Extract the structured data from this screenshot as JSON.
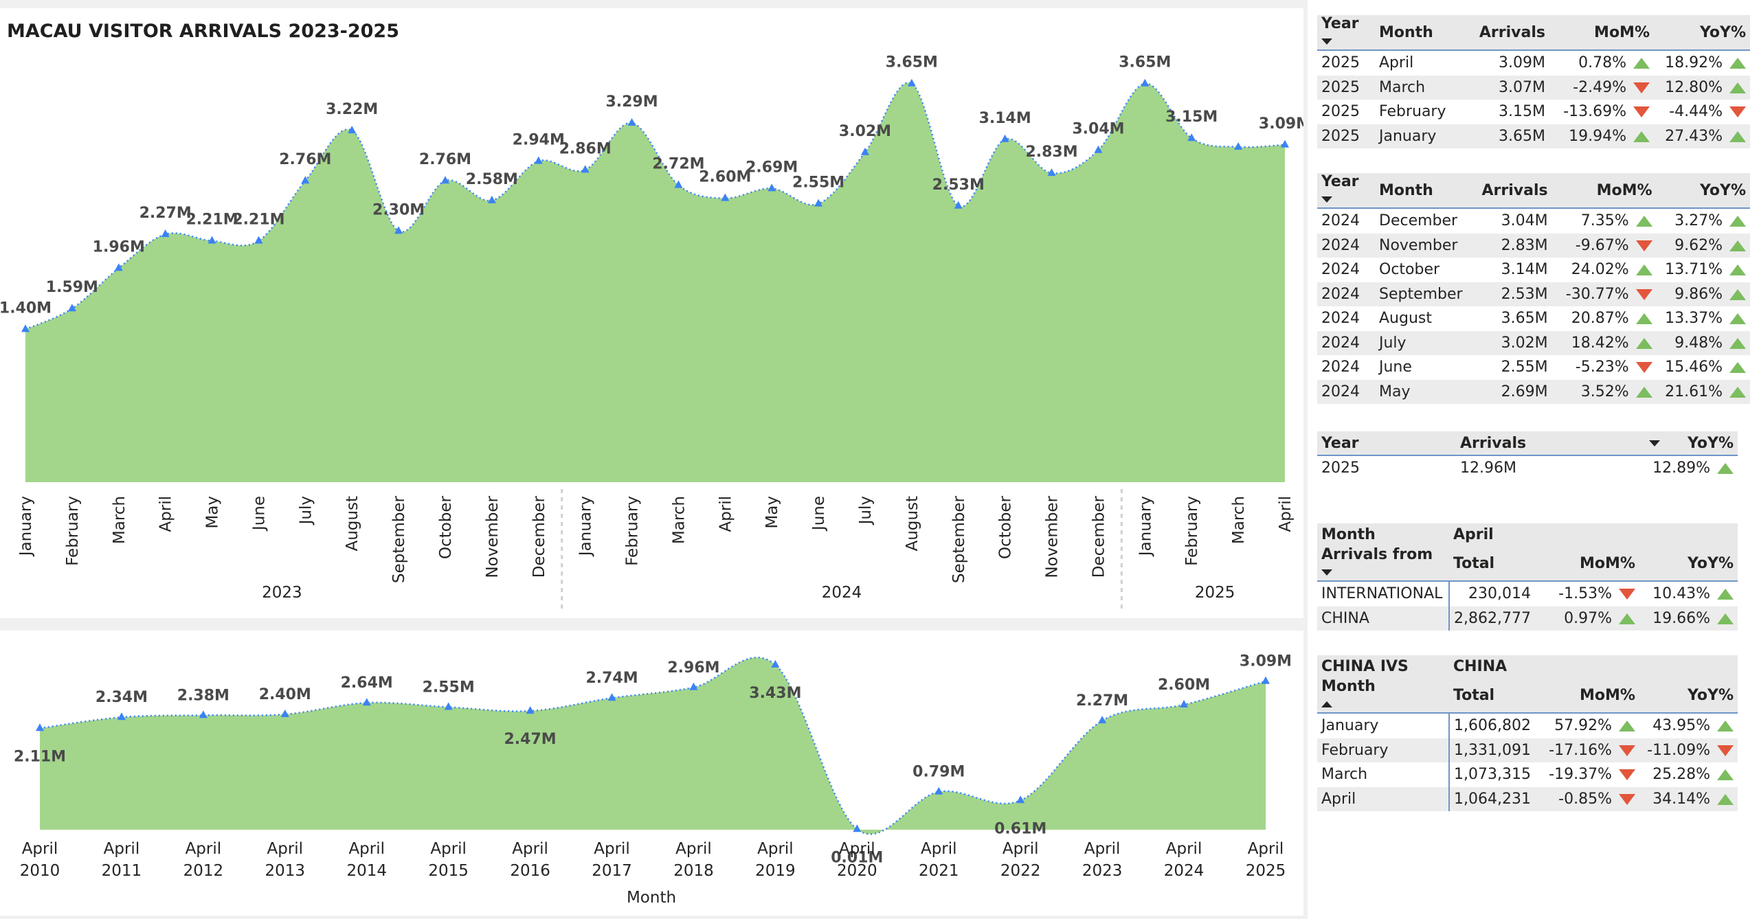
{
  "page_title": "MACAU VISITOR ARRIVALS 2023-2025",
  "colors": {
    "area_fill": "#a3d68b",
    "line": "#3b82f6",
    "up": "#7cbd5f",
    "down": "#e2563b",
    "header_rule": "#6e95c8"
  },
  "chart_data": [
    {
      "type": "area",
      "title": "MACAU VISITOR ARRIVALS 2023-2025",
      "categories": [
        "January",
        "February",
        "March",
        "April",
        "May",
        "June",
        "July",
        "August",
        "September",
        "October",
        "November",
        "December",
        "January",
        "February",
        "March",
        "April",
        "May",
        "June",
        "July",
        "August",
        "September",
        "October",
        "November",
        "December",
        "January",
        "February",
        "March",
        "April"
      ],
      "values": [
        1.4,
        1.59,
        1.96,
        2.27,
        2.21,
        2.21,
        2.76,
        3.22,
        2.3,
        2.76,
        2.58,
        2.94,
        2.86,
        3.29,
        2.72,
        2.6,
        2.69,
        2.55,
        3.02,
        3.65,
        2.53,
        3.14,
        2.83,
        3.04,
        3.65,
        3.15,
        3.07,
        3.09
      ],
      "labels": [
        "1.40M",
        "1.59M",
        "1.96M",
        "2.27M",
        "2.21M",
        "2.21M",
        "2.76M",
        "3.22M",
        "2.30M",
        "2.76M",
        "2.58M",
        "2.94M",
        "2.86M",
        "3.29M",
        "2.72M",
        "2.60M",
        "2.69M",
        "2.55M",
        "3.02M",
        "3.65M",
        "2.53M",
        "3.14M",
        "2.83M",
        "3.04M",
        "3.65M",
        "3.15M",
        "",
        "3.09M"
      ],
      "year_groups": [
        {
          "label": "2023",
          "count": 12
        },
        {
          "label": "2024",
          "count": 12
        },
        {
          "label": "2025",
          "count": 4
        }
      ],
      "ylim": [
        0,
        3.9
      ],
      "xlabel": "",
      "ylabel": "",
      "grid": false
    },
    {
      "type": "area",
      "categories": [
        "April",
        "April",
        "April",
        "April",
        "April",
        "April",
        "April",
        "April",
        "April",
        "April",
        "April",
        "April",
        "April",
        "April",
        "April",
        "April"
      ],
      "years": [
        "2010",
        "2011",
        "2012",
        "2013",
        "2014",
        "2015",
        "2016",
        "2017",
        "2018",
        "2019",
        "2020",
        "2021",
        "2022",
        "2023",
        "2024",
        "2025"
      ],
      "values": [
        2.11,
        2.34,
        2.38,
        2.4,
        2.64,
        2.55,
        2.47,
        2.74,
        2.96,
        3.43,
        0.01,
        0.79,
        0.61,
        2.27,
        2.6,
        3.09
      ],
      "labels": [
        "2.11M",
        "2.34M",
        "2.38M",
        "2.40M",
        "2.64M",
        "2.55M",
        "2.47M",
        "2.74M",
        "2.96M",
        "3.43M",
        "0.01M",
        "0.79M",
        "0.61M",
        "2.27M",
        "2.60M",
        "3.09M"
      ],
      "xlabel": "Month",
      "ylim": [
        0,
        3.5
      ],
      "grid": false
    }
  ],
  "t1": {
    "headers": {
      "year": "Year",
      "month": "Month",
      "arrivals": "Arrivals",
      "mom": "MoM%",
      "yoy": "YoY%"
    },
    "rows": [
      {
        "year": "2025",
        "month": "April",
        "arrivals": "3.09M",
        "mom": "0.78%",
        "mom_dir": "up",
        "yoy": "18.92%",
        "yoy_dir": "up"
      },
      {
        "year": "2025",
        "month": "March",
        "arrivals": "3.07M",
        "mom": "-2.49%",
        "mom_dir": "down",
        "yoy": "12.80%",
        "yoy_dir": "up"
      },
      {
        "year": "2025",
        "month": "February",
        "arrivals": "3.15M",
        "mom": "-13.69%",
        "mom_dir": "down",
        "yoy": "-4.44%",
        "yoy_dir": "down"
      },
      {
        "year": "2025",
        "month": "January",
        "arrivals": "3.65M",
        "mom": "19.94%",
        "mom_dir": "up",
        "yoy": "27.43%",
        "yoy_dir": "up"
      }
    ]
  },
  "t2": {
    "headers": {
      "year": "Year",
      "month": "Month",
      "arrivals": "Arrivals",
      "mom": "MoM%",
      "yoy": "YoY%"
    },
    "rows": [
      {
        "year": "2024",
        "month": "December",
        "arrivals": "3.04M",
        "mom": "7.35%",
        "mom_dir": "up",
        "yoy": "3.27%",
        "yoy_dir": "up"
      },
      {
        "year": "2024",
        "month": "November",
        "arrivals": "2.83M",
        "mom": "-9.67%",
        "mom_dir": "down",
        "yoy": "9.62%",
        "yoy_dir": "up"
      },
      {
        "year": "2024",
        "month": "October",
        "arrivals": "3.14M",
        "mom": "24.02%",
        "mom_dir": "up",
        "yoy": "13.71%",
        "yoy_dir": "up"
      },
      {
        "year": "2024",
        "month": "September",
        "arrivals": "2.53M",
        "mom": "-30.77%",
        "mom_dir": "down",
        "yoy": "9.86%",
        "yoy_dir": "up"
      },
      {
        "year": "2024",
        "month": "August",
        "arrivals": "3.65M",
        "mom": "20.87%",
        "mom_dir": "up",
        "yoy": "13.37%",
        "yoy_dir": "up"
      },
      {
        "year": "2024",
        "month": "July",
        "arrivals": "3.02M",
        "mom": "18.42%",
        "mom_dir": "up",
        "yoy": "9.48%",
        "yoy_dir": "up"
      },
      {
        "year": "2024",
        "month": "June",
        "arrivals": "2.55M",
        "mom": "-5.23%",
        "mom_dir": "down",
        "yoy": "15.46%",
        "yoy_dir": "up"
      },
      {
        "year": "2024",
        "month": "May",
        "arrivals": "2.69M",
        "mom": "3.52%",
        "mom_dir": "up",
        "yoy": "21.61%",
        "yoy_dir": "up"
      }
    ]
  },
  "t3": {
    "headers": {
      "year": "Year",
      "arrivals": "Arrivals",
      "yoy": "YoY%"
    },
    "rows": [
      {
        "year": "2025",
        "arrivals": "12.96M",
        "yoy": "12.89%",
        "yoy_dir": "up"
      }
    ]
  },
  "t4": {
    "headers": {
      "month": "Month",
      "month_value": "April",
      "arrivals_from": "Arrivals from",
      "total": "Total",
      "mom": "MoM%",
      "yoy": "YoY%"
    },
    "rows": [
      {
        "from": "INTERNATIONAL",
        "total": "230,014",
        "mom": "-1.53%",
        "mom_dir": "down",
        "yoy": "10.43%",
        "yoy_dir": "up"
      },
      {
        "from": "CHINA",
        "total": "2,862,777",
        "mom": "0.97%",
        "mom_dir": "up",
        "yoy": "19.66%",
        "yoy_dir": "up"
      }
    ]
  },
  "t5": {
    "headers": {
      "china_ivs": "CHINA IVS",
      "china": "CHINA",
      "month": "Month",
      "total": "Total",
      "mom": "MoM%",
      "yoy": "YoY%"
    },
    "rows": [
      {
        "month": "January",
        "total": "1,606,802",
        "mom": "57.92%",
        "mom_dir": "up",
        "yoy": "43.95%",
        "yoy_dir": "up"
      },
      {
        "month": "February",
        "total": "1,331,091",
        "mom": "-17.16%",
        "mom_dir": "down",
        "yoy": "-11.09%",
        "yoy_dir": "down"
      },
      {
        "month": "March",
        "total": "1,073,315",
        "mom": "-19.37%",
        "mom_dir": "down",
        "yoy": "25.28%",
        "yoy_dir": "up"
      },
      {
        "month": "April",
        "total": "1,064,231",
        "mom": "-0.85%",
        "mom_dir": "down",
        "yoy": "34.14%",
        "yoy_dir": "up"
      }
    ]
  }
}
